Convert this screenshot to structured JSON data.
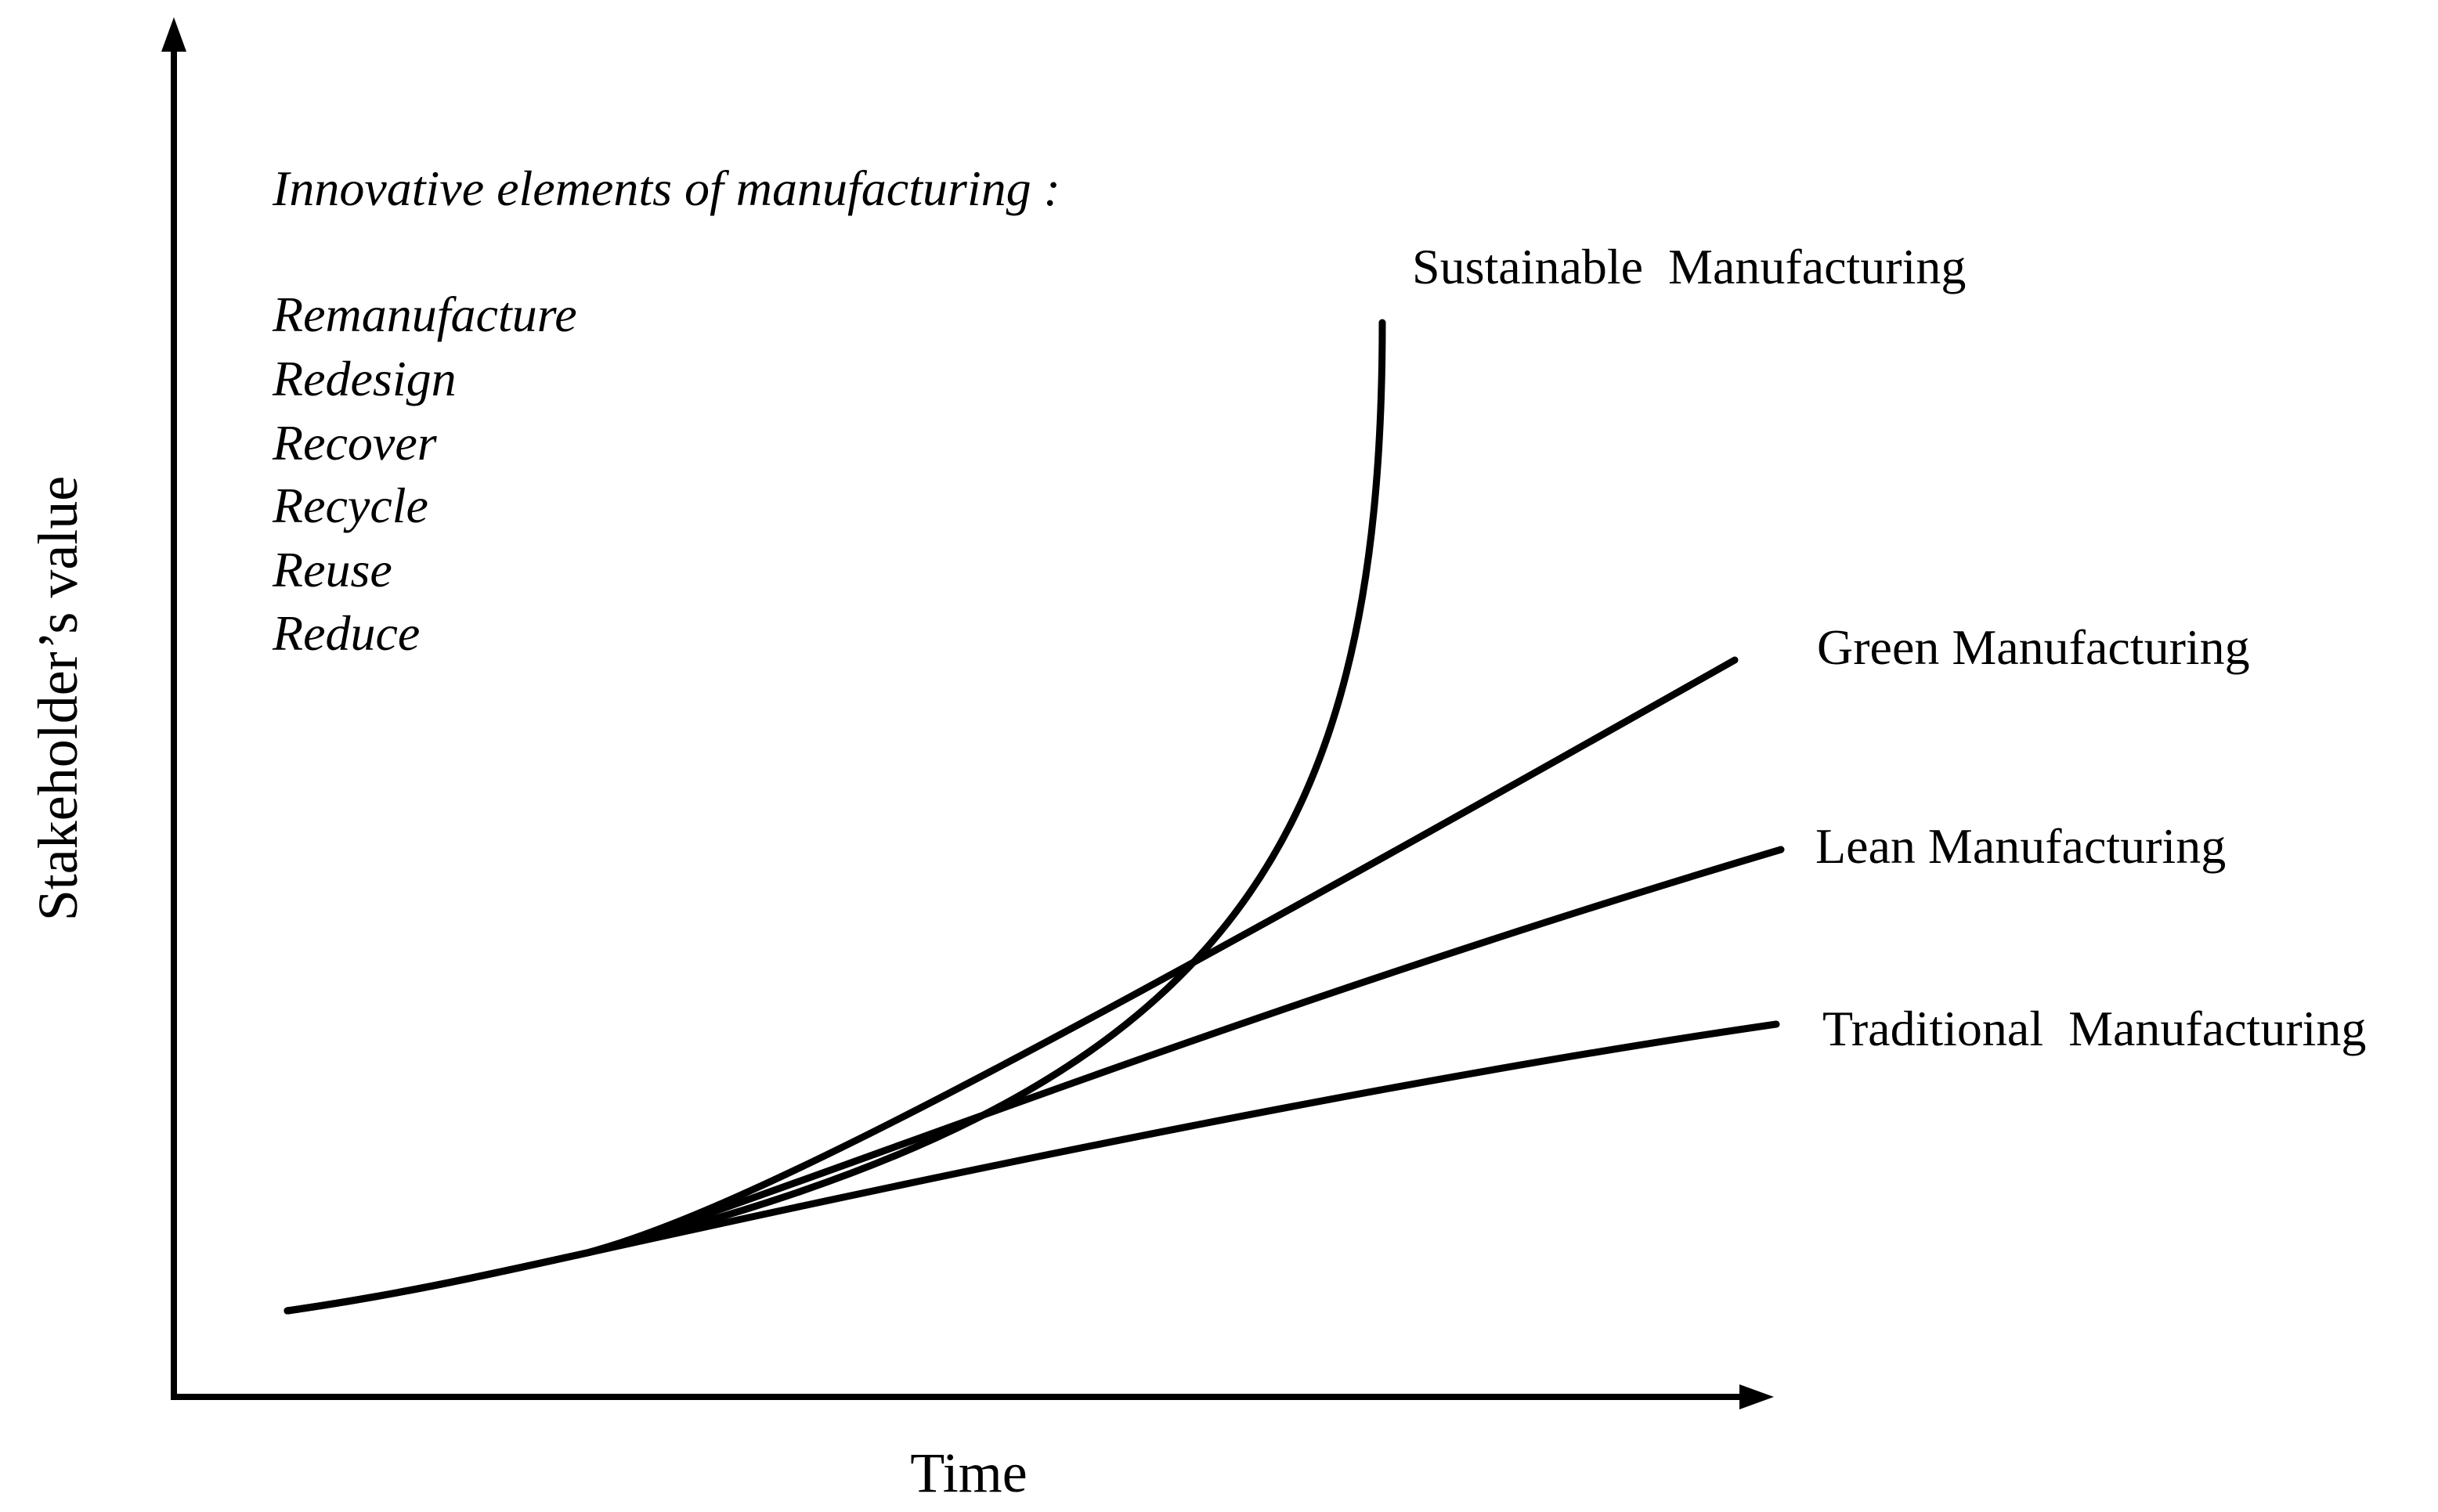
{
  "axes": {
    "x_label": "Time",
    "y_label": "Stakeholder’s value"
  },
  "elements_box": {
    "heading": "Innovative elements of manufacturing :",
    "items": [
      "Remanufacture",
      "Redesign",
      "Recover",
      "Recycle",
      "Reuse",
      "Reduce"
    ]
  },
  "curves": [
    {
      "key": "sustainable",
      "label": "Sustainable  Manufacturing",
      "shape": "exponential"
    },
    {
      "key": "green",
      "label": "Green Manufacturing",
      "shape": "linear-steep"
    },
    {
      "key": "lean",
      "label": "Lean Manufacturing",
      "shape": "linear-medium"
    },
    {
      "key": "traditional",
      "label": "Traditional  Manufacturing",
      "shape": "linear-shallow"
    }
  ],
  "colors": {
    "line": "#000000",
    "background": "#ffffff"
  }
}
